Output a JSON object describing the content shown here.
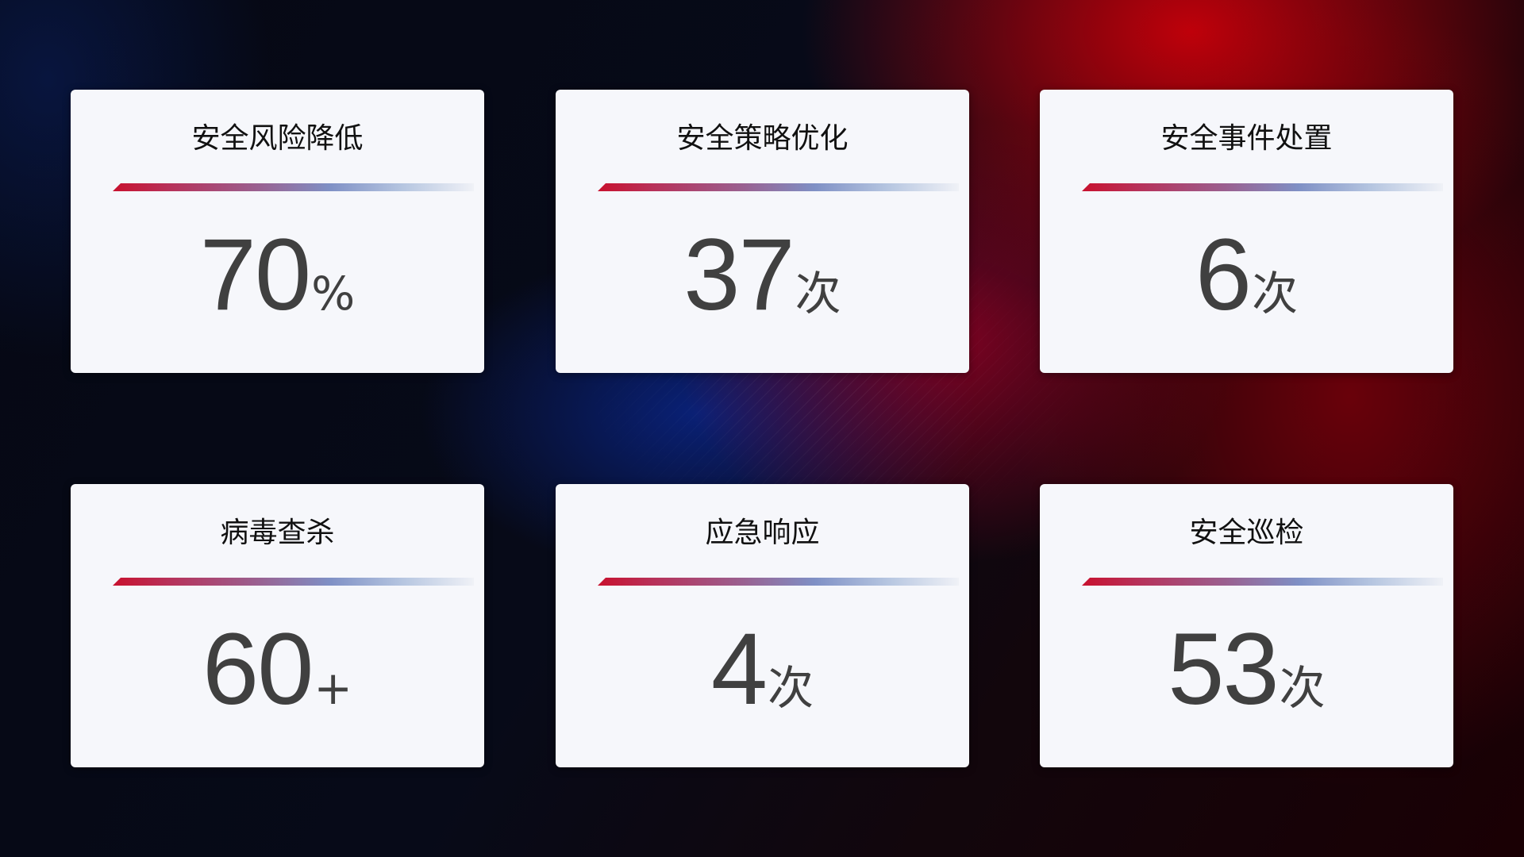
{
  "cards": [
    {
      "title": "安全风险降低",
      "value": "70",
      "unit": "%"
    },
    {
      "title": "安全策略优化",
      "value": "37",
      "unit": "次"
    },
    {
      "title": "安全事件处置",
      "value": "6",
      "unit": "次"
    },
    {
      "title": "病毒查杀",
      "value": "60",
      "unit": "+"
    },
    {
      "title": "应急响应",
      "value": "4",
      "unit": "次"
    },
    {
      "title": "安全巡检",
      "value": "53",
      "unit": "次"
    }
  ],
  "colors": {
    "accent_red": "#c8112e",
    "accent_blue": "#7f90c5",
    "card_bg": "#f6f7fb",
    "value_text": "#404040"
  }
}
